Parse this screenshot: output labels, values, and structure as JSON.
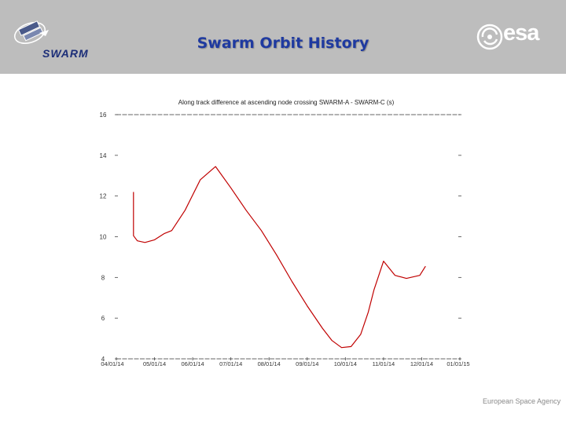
{
  "header": {
    "title": "Swarm Orbit History",
    "left_logo_text": "SWARM",
    "right_logo_text": "esa"
  },
  "footer": {
    "agency": "European Space Agency"
  },
  "chart_data": {
    "type": "line",
    "title": "Along track difference at ascending node crossing SWARM-A - SWARM-C (s)",
    "xlabel": "",
    "ylabel": "",
    "ylim": [
      4,
      16
    ],
    "yticks": [
      4,
      6,
      8,
      10,
      12,
      14,
      16
    ],
    "ytick_labels": [
      "4",
      "6",
      "8",
      "10",
      "12",
      "14",
      "16"
    ],
    "xlim": [
      0,
      9
    ],
    "xticks": [
      0,
      1,
      2,
      3,
      4,
      5,
      6,
      7,
      8,
      9
    ],
    "xtick_labels": [
      "04/01/14",
      "05/01/14",
      "06/01/14",
      "07/01/14",
      "08/01/14",
      "09/01/14",
      "10/01/14",
      "11/01/14",
      "12/01/14",
      "01/01/15"
    ],
    "series": [
      {
        "name": "SWARM-A - SWARM-C",
        "color": "#c00000",
        "x": [
          0.45,
          0.45,
          0.55,
          0.75,
          1.0,
          1.25,
          1.45,
          1.8,
          2.2,
          2.6,
          3.0,
          3.4,
          3.8,
          4.2,
          4.6,
          5.0,
          5.4,
          5.65,
          5.9,
          6.15,
          6.4,
          6.6,
          6.75,
          7.0,
          7.3,
          7.6,
          7.95,
          8.1
        ],
        "y": [
          12.2,
          10.05,
          9.8,
          9.72,
          9.85,
          10.15,
          10.3,
          11.3,
          12.8,
          13.45,
          12.4,
          11.3,
          10.3,
          9.1,
          7.8,
          6.6,
          5.5,
          4.9,
          4.55,
          4.6,
          5.2,
          6.3,
          7.4,
          8.8,
          8.1,
          7.95,
          8.1,
          8.55
        ]
      }
    ]
  }
}
